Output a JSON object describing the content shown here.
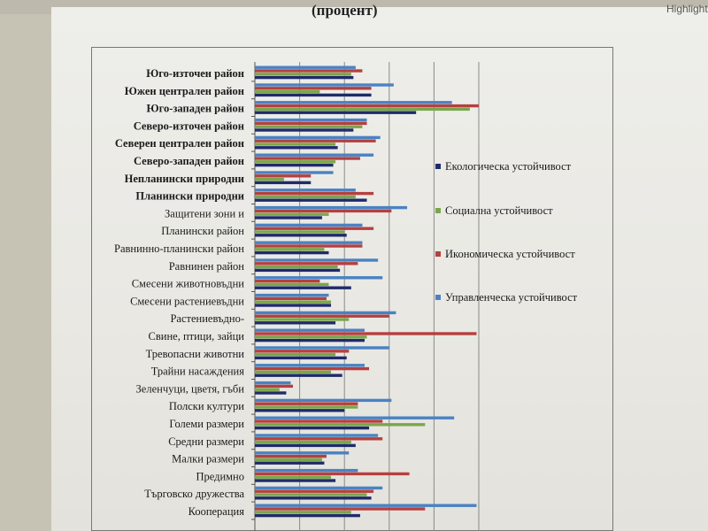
{
  "header": {
    "title": "(процент)",
    "toolbar_fragments": [
      "",
      "",
      "Highlight"
    ]
  },
  "chart_data": {
    "type": "bar",
    "orientation": "horizontal",
    "title": "(процент)",
    "xlabel": "",
    "ylabel": "",
    "xlim": [
      0,
      100
    ],
    "grid": true,
    "legend_position": "right",
    "categories": [
      "Юго-източен район",
      "Южен централен район",
      "Юго-западен район",
      "Северо-източен район",
      "Северен централен район",
      "Северо-западен район",
      "Непланински природни",
      "Планински природни",
      "Защитени зони и",
      "Планински район",
      "Равнинно-планински район",
      "Равнинен район",
      "Смесени животновъдни",
      "Смесени растениевъдни",
      "Растениевъдно-",
      "Свине, птици, зайци",
      "Тревопасни животни",
      "Трайни насаждения",
      "Зеленчуци, цветя, гъби",
      "Полски култури",
      "Големи размери",
      "Средни размери",
      "Малки размери",
      "Предимно",
      "Търговско дружества",
      "Кооперация"
    ],
    "bold_categories": [
      0,
      1,
      2,
      3,
      4,
      5,
      6,
      7
    ],
    "series": [
      {
        "name": "Екологическа устойчивост",
        "color": "#1f2a6b",
        "values": [
          44,
          52,
          72,
          44,
          37,
          35,
          25,
          50,
          30,
          41,
          33,
          38,
          43,
          34,
          36,
          49,
          41,
          39,
          14,
          40,
          51,
          45,
          31,
          36,
          52,
          47
        ]
      },
      {
        "name": "Социална устойчивост",
        "color": "#7aa64a",
        "values": [
          43,
          29,
          96,
          48,
          36,
          36,
          13,
          45,
          33,
          40,
          31,
          37,
          33,
          34,
          42,
          50,
          36,
          34,
          11,
          46,
          76,
          43,
          30,
          34,
          50,
          43
        ]
      },
      {
        "name": "Икономическа устойчивост",
        "color": "#b5403f",
        "values": [
          48,
          52,
          100,
          50,
          54,
          47,
          25,
          53,
          61,
          53,
          48,
          46,
          29,
          32,
          60,
          99,
          42,
          51,
          17,
          46,
          57,
          57,
          32,
          69,
          53,
          76
        ]
      },
      {
        "name": "Управленческа устойчивост",
        "color": "#4a82c3",
        "values": [
          45,
          62,
          88,
          50,
          56,
          53,
          35,
          45,
          68,
          48,
          48,
          55,
          57,
          33,
          63,
          49,
          60,
          49,
          16,
          61,
          89,
          55,
          42,
          46,
          57,
          99
        ]
      }
    ]
  }
}
